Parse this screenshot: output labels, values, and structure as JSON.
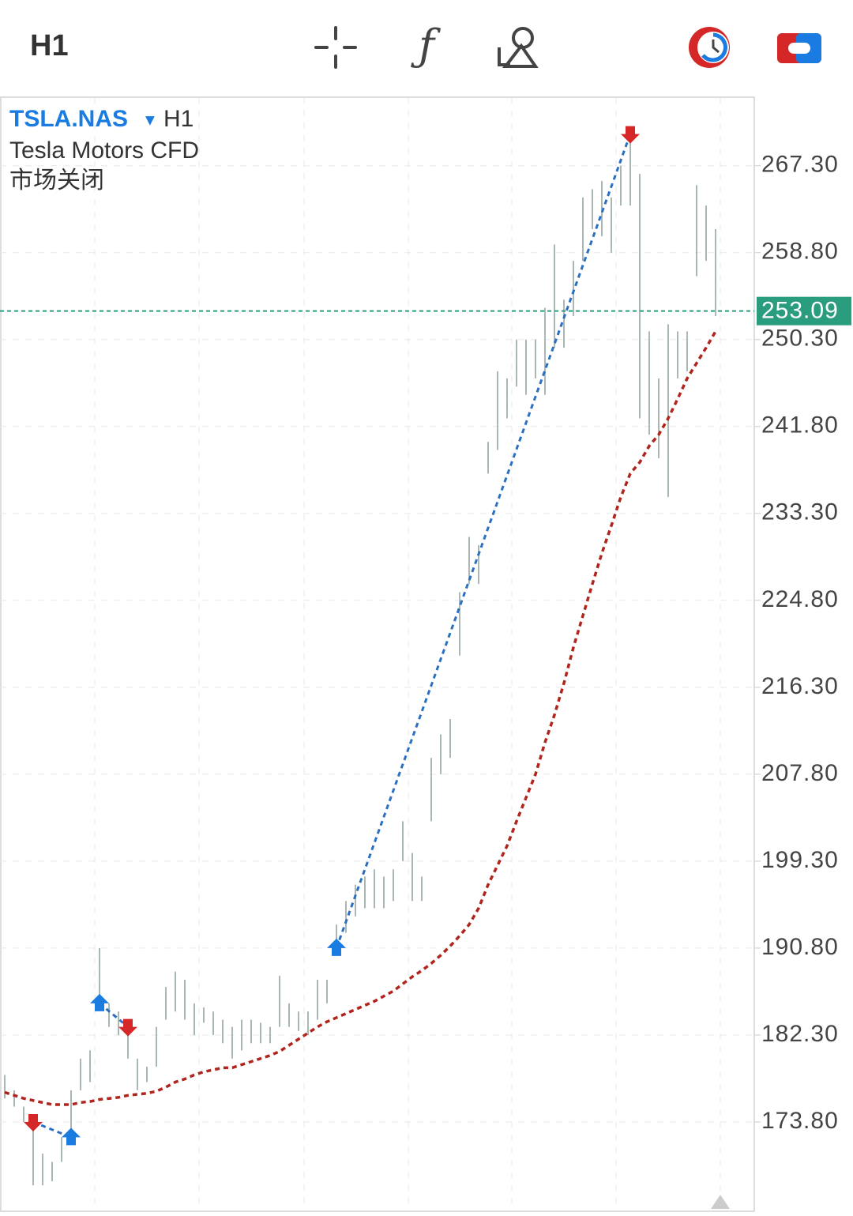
{
  "toolbar": {
    "timeframe": "H1"
  },
  "chart_data": {
    "type": "ohlc",
    "symbol": "TSLA.NAS",
    "timeframe": "H1",
    "subtitle": "Tesla Motors CFD",
    "status": "市场关闭",
    "high": [
      178.4,
      176.9,
      175.3,
      173.8,
      170.7,
      169.9,
      172.3,
      176.9,
      180,
      180.8,
      190.8,
      185.4,
      184.6,
      183.1,
      180,
      179.2,
      183.1,
      187,
      188.5,
      187.7,
      185.4,
      185,
      184.6,
      183.8,
      183.1,
      183.8,
      183.8,
      183.5,
      183.1,
      188.1,
      185.4,
      184.6,
      184.6,
      187.7,
      187.7,
      193.1,
      195.4,
      197,
      197.8,
      198.5,
      197.8,
      198.5,
      203.2,
      200.1,
      197.8,
      209.4,
      211.7,
      213.2,
      225.6,
      231,
      230.2,
      240.3,
      247.2,
      246.5,
      250.3,
      250.3,
      250.3,
      253.4,
      259.6,
      254.2,
      258,
      264.2,
      265,
      265.8,
      264.2,
      267.3,
      270.4,
      266.5,
      251.1,
      246.5,
      251.8,
      251.1,
      251.1,
      265.4,
      263.4,
      261.1
    ],
    "low": [
      176.1,
      175.3,
      173.8,
      167.6,
      167.6,
      168,
      169.9,
      172.3,
      176.9,
      177.7,
      185.4,
      183.1,
      182.3,
      180,
      176.9,
      177.7,
      179.2,
      183.8,
      184.6,
      183.8,
      182.3,
      183.5,
      182.3,
      181.5,
      180,
      180.8,
      181.5,
      181.5,
      181.5,
      183.1,
      183.1,
      182.7,
      182.3,
      183.8,
      185.4,
      190.8,
      192.3,
      193.9,
      194.7,
      194.7,
      194.7,
      195.4,
      199.3,
      195.4,
      195.4,
      203.2,
      207.8,
      209.4,
      219.4,
      226.4,
      226.4,
      237.2,
      239.5,
      242.6,
      245.7,
      244.9,
      246.5,
      244.9,
      249.5,
      249.5,
      252.6,
      258,
      261.1,
      260.4,
      258.8,
      263.4,
      263.4,
      242.6,
      241,
      238.7,
      234.9,
      246.5,
      247.2,
      256.5,
      258,
      252.6
    ],
    "ma": [
      176.7,
      176.4,
      176.1,
      175.9,
      175.7,
      175.5,
      175.5,
      175.5,
      175.7,
      175.8,
      176.0,
      176.1,
      176.2,
      176.4,
      176.5,
      176.6,
      176.8,
      177.2,
      177.7,
      178.0,
      178.4,
      178.7,
      178.9,
      179.1,
      179.1,
      179.4,
      179.7,
      180.0,
      180.3,
      180.7,
      181.3,
      181.9,
      182.5,
      183.1,
      183.6,
      184.0,
      184.4,
      184.8,
      185.2,
      185.6,
      186.1,
      186.6,
      187.3,
      188.0,
      188.6,
      189.3,
      190.1,
      191.0,
      192.0,
      193.1,
      194.7,
      197.0,
      198.9,
      200.8,
      203.2,
      205.5,
      207.8,
      210.9,
      213.6,
      216.7,
      220.2,
      223.3,
      226.4,
      229.4,
      232.1,
      234.9,
      237.2,
      238.3,
      239.9,
      241.0,
      242.6,
      244.5,
      246.5,
      248.0,
      249.5,
      251.1
    ],
    "signals": [
      null,
      null,
      null,
      "down",
      null,
      null,
      null,
      "up",
      null,
      null,
      "up",
      null,
      null,
      "down",
      null,
      null,
      null,
      null,
      null,
      null,
      null,
      null,
      null,
      null,
      null,
      null,
      null,
      null,
      null,
      null,
      null,
      null,
      null,
      null,
      null,
      "up",
      null,
      null,
      null,
      null,
      null,
      null,
      null,
      null,
      null,
      null,
      null,
      null,
      null,
      null,
      null,
      null,
      null,
      null,
      null,
      null,
      null,
      null,
      null,
      null,
      null,
      null,
      null,
      null,
      null,
      null,
      "down",
      null,
      null,
      null,
      null,
      null,
      null,
      null,
      null,
      null
    ],
    "bar_color": "#a9b8b4",
    "ma_color": "#b0241c",
    "trend_color": "#2a6fc0",
    "up_color": "#1a7be0",
    "down_color": "#d62728",
    "last_price": 253.09,
    "last_color": "#2a9d7f",
    "ylim": [
      165.3,
      274.0
    ],
    "yticks": [
      {
        "value": 173.8,
        "label": "173.80"
      },
      {
        "value": 182.3,
        "label": "182.30"
      },
      {
        "value": 190.8,
        "label": "190.80"
      },
      {
        "value": 199.3,
        "label": "199.30"
      },
      {
        "value": 207.8,
        "label": "207.80"
      },
      {
        "value": 216.3,
        "label": "216.30"
      },
      {
        "value": 224.8,
        "label": "224.80"
      },
      {
        "value": 233.3,
        "label": "233.30"
      },
      {
        "value": 241.8,
        "label": "241.80"
      },
      {
        "value": 250.3,
        "label": "250.30"
      },
      {
        "value": 258.8,
        "label": "258.80"
      },
      {
        "value": 267.3,
        "label": "267.30"
      }
    ],
    "grid": true
  }
}
